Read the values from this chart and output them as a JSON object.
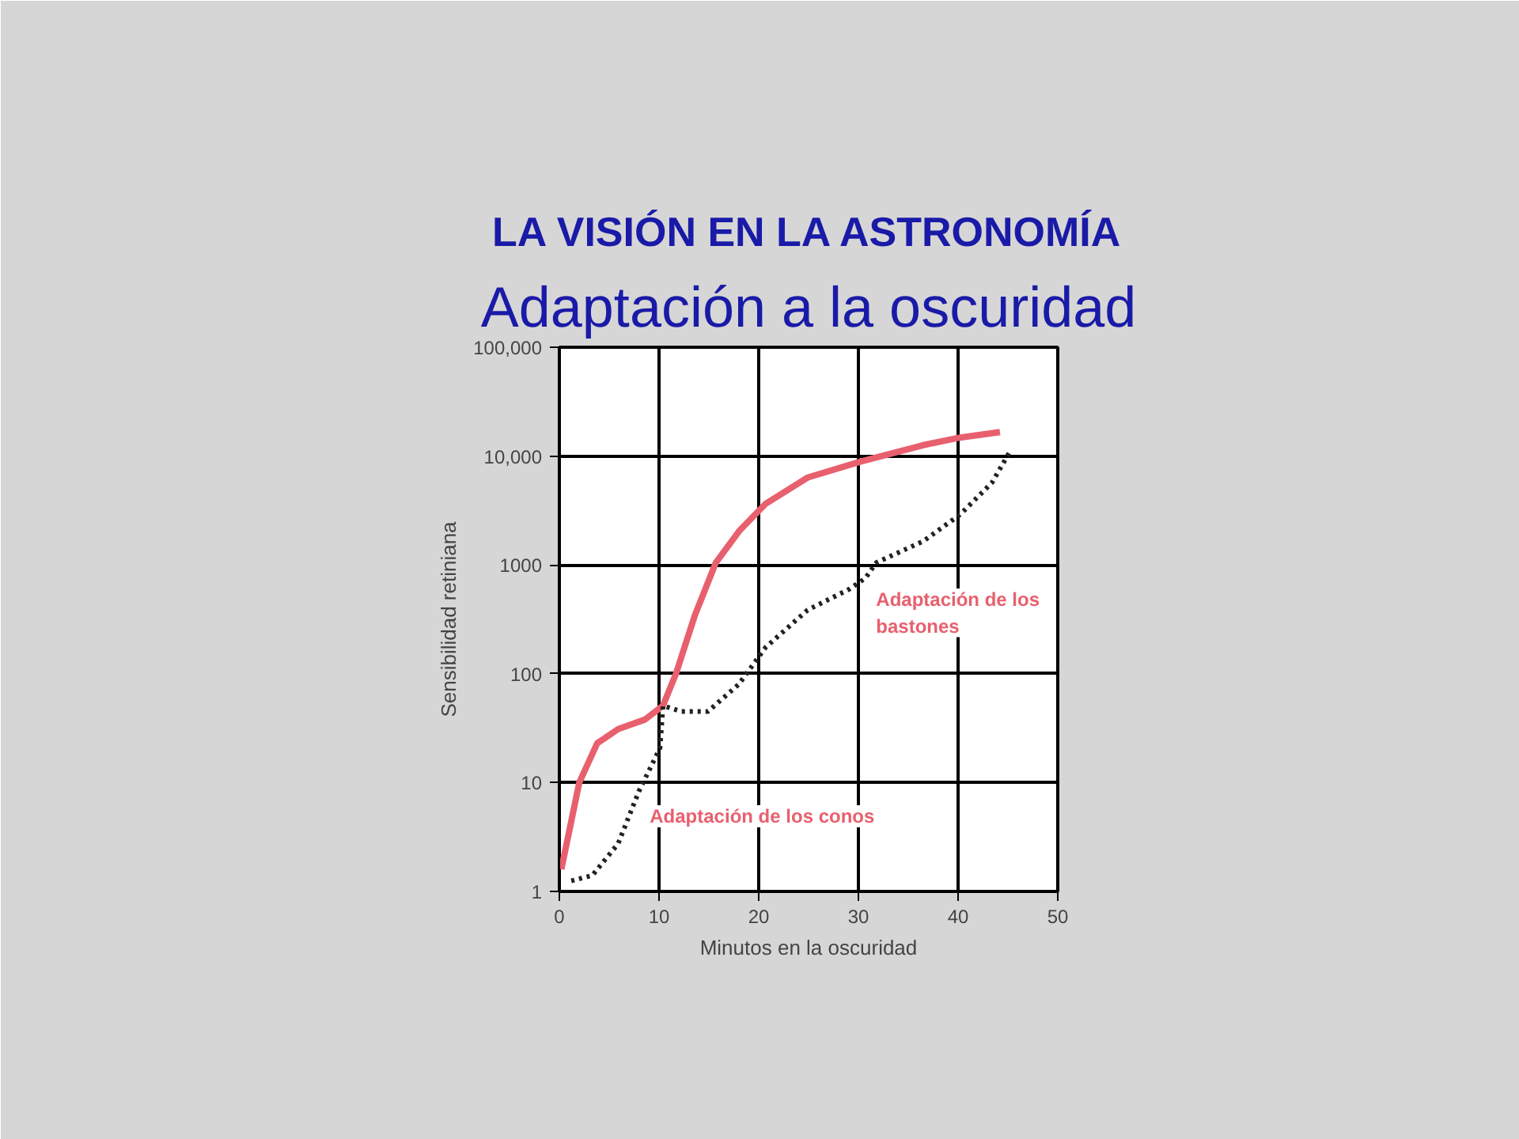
{
  "chart_data": {
    "type": "line",
    "title": "LA VISIÓN EN LA ASTRONOMÍA",
    "subtitle": "Adaptación a la oscuridad",
    "xlabel": "Minutos en la oscuridad",
    "ylabel": "Sensibilidad retiniana",
    "log": "y",
    "grid": true,
    "marker": "none",
    "xlim": [
      0,
      50
    ],
    "xticks": [
      0,
      10,
      20,
      30,
      40,
      50
    ],
    "ylim": [
      1,
      100000
    ],
    "yticks": [
      1,
      10,
      100,
      1000,
      {
        "value": 10000,
        "label": "10,000"
      },
      {
        "value": 100000,
        "label": "100,000"
      }
    ],
    "series": [
      {
        "color": "#e8606e",
        "line_style": "solid",
        "x": [
          0.2,
          2,
          3.8,
          5.9,
          8.6,
          10.4,
          11.7,
          13.6,
          15.7,
          18.1,
          20.7,
          24.9,
          30.2,
          36.5,
          40.2,
          44.2
        ],
        "values": [
          1.6,
          10,
          23,
          31,
          38,
          51,
          100,
          345,
          1050,
          2080,
          3650,
          6350,
          8900,
          12600,
          14800,
          16600
        ]
      },
      {
        "color": "#222222",
        "line_style": "dotted",
        "x": [
          1.2,
          3.3,
          5.9,
          8.0,
          10.1,
          10.4,
          12.2,
          14.9,
          18,
          20.7,
          24.9,
          29.1,
          30.7,
          31.8,
          36.5,
          40.2,
          43.4,
          45.2
        ],
        "values": [
          1.25,
          1.4,
          2.75,
          8.4,
          20.8,
          51,
          45,
          45,
          80,
          175,
          385,
          600,
          755,
          1050,
          1650,
          2900,
          5700,
          11000
        ]
      }
    ],
    "annotations": [
      {
        "text": "Adaptación de los conos",
        "x": 7.8,
        "y": 6.4
      },
      {
        "text": "Adaptación de los bastones",
        "x": 30.5,
        "y": 600
      }
    ]
  }
}
